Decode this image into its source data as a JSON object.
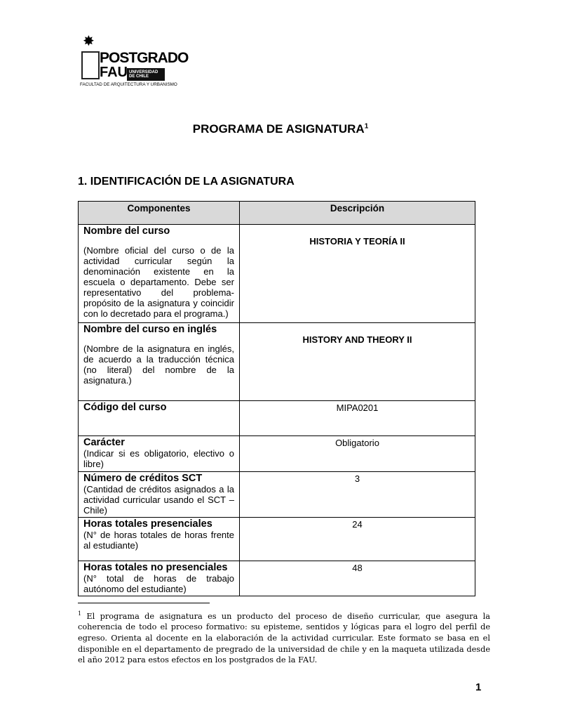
{
  "logo": {
    "title": "POSTGRADO",
    "subtitle": "FAU",
    "badge": "UNIVERSIDAD DE CHILE",
    "faculty": "FACULTAD DE ARQUITECTURA Y URBANISMO"
  },
  "title": "PROGRAMA DE ASIGNATURA",
  "title_ref": "1",
  "section": "1. IDENTIFICACIÓN DE LA ASIGNATURA",
  "table": {
    "headers": [
      "Componentes",
      "Descripción"
    ],
    "rows": [
      {
        "label": "Nombre del curso",
        "note": "(Nombre oficial del curso o de la actividad curricular según la denominación existente en la escuela o departamento. Debe ser representativo del problema-propósito de la asignatura y coincidir con lo decretado para el programa.)",
        "value": "HISTORIA Y TEORÍA II",
        "bold": true,
        "h": 140
      },
      {
        "label": "Nombre del curso en inglés",
        "note": "(Nombre de la asignatura en inglés, de acuerdo a la traducción técnica (no literal) del nombre de la asignatura.)",
        "value": "HISTORY AND THEORY II",
        "bold": true,
        "h": 111
      },
      {
        "label": "Código del curso",
        "note": "",
        "value": "MIPA0201",
        "bold": false,
        "h": 50
      },
      {
        "label": "Carácter",
        "note": "(Indicar si es obligatorio, electivo o libre)",
        "value": "Obligatorio",
        "bold": false,
        "h": 51
      },
      {
        "label": "Número de créditos SCT",
        "note": "(Cantidad de créditos asignados a la actividad curricular usando el SCT – Chile)",
        "value": "3",
        "bold": false,
        "h": 61
      },
      {
        "label": "Horas totales presenciales",
        "note": "(N° de horas totales de horas frente al estudiante)",
        "value": "24",
        "bold": false,
        "h": 62
      },
      {
        "label": "Horas totales no presenciales",
        "note": "(N° total de horas de trabajo autónomo del estudiante)",
        "value": "48",
        "bold": false,
        "h": 46
      }
    ]
  },
  "footnote": {
    "mark": "1",
    "text": "El programa de asignatura es un producto del proceso de diseño curricular, que asegura la coherencia de todo el proceso formativo: su episteme, sentidos y lógicas para el logro del perfil de egreso. Orienta al docente en la elaboración de la actividad curricular. Este formato se basa en el disponible en el departamento de pregrado de la universidad de chile y en la maqueta utilizada desde el año 2012 para estos efectos en los postgrados de la FAU."
  },
  "page_number": "1"
}
